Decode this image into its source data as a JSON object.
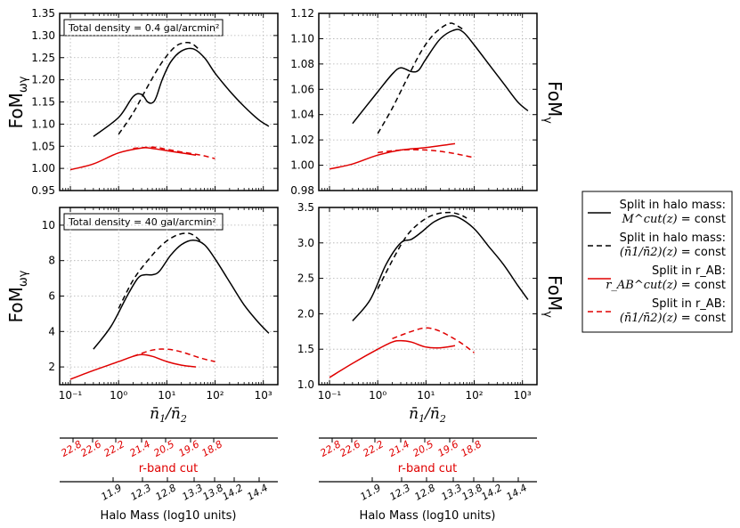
{
  "chart_data": [
    {
      "type": "line",
      "panel": "top-left",
      "ylabel": "FoM_ωγ",
      "xscale": "log",
      "xlim": [
        0.06,
        2000
      ],
      "ylim": [
        0.95,
        1.35
      ],
      "yticks": [
        "0.95",
        "1.00",
        "1.05",
        "1.10",
        "1.15",
        "1.20",
        "1.25",
        "1.30",
        "1.35"
      ],
      "xticks": [],
      "annotation": "Total density = 0.4 gal/arcmin²",
      "series": [
        {
          "name": "halo_const",
          "color": "#000000",
          "style": "solid",
          "points": [
            [
              0.3,
              1.072
            ],
            [
              1,
              1.115
            ],
            [
              2,
              1.162
            ],
            [
              3,
              1.167
            ],
            [
              4,
              1.15
            ],
            [
              5,
              1.148
            ],
            [
              6,
              1.16
            ],
            [
              8,
              1.2
            ],
            [
              12,
              1.24
            ],
            [
              20,
              1.265
            ],
            [
              35,
              1.27
            ],
            [
              60,
              1.25
            ],
            [
              100,
              1.215
            ],
            [
              200,
              1.175
            ],
            [
              400,
              1.14
            ],
            [
              800,
              1.11
            ],
            [
              1300,
              1.095
            ]
          ]
        },
        {
          "name": "halo_ratio",
          "color": "#000000",
          "style": "dashed",
          "points": [
            [
              1,
              1.077
            ],
            [
              2,
              1.125
            ],
            [
              4,
              1.185
            ],
            [
              8,
              1.24
            ],
            [
              15,
              1.275
            ],
            [
              25,
              1.284
            ],
            [
              35,
              1.28
            ],
            [
              50,
              1.265
            ]
          ]
        },
        {
          "name": "rab_const",
          "color": "#e00000",
          "style": "solid",
          "points": [
            [
              0.1,
              0.997
            ],
            [
              0.3,
              1.01
            ],
            [
              1,
              1.035
            ],
            [
              3,
              1.046
            ],
            [
              5,
              1.045
            ],
            [
              10,
              1.04
            ],
            [
              20,
              1.035
            ],
            [
              40,
              1.03
            ]
          ]
        },
        {
          "name": "rab_ratio",
          "color": "#e00000",
          "style": "dashed",
          "points": [
            [
              2,
              1.045
            ],
            [
              5,
              1.048
            ],
            [
              10,
              1.043
            ],
            [
              20,
              1.037
            ],
            [
              50,
              1.03
            ],
            [
              100,
              1.022
            ]
          ]
        }
      ]
    },
    {
      "type": "line",
      "panel": "top-right",
      "ylabel": "FoM_γ",
      "xscale": "log",
      "xlim": [
        0.06,
        2000
      ],
      "ylim": [
        0.98,
        1.12
      ],
      "yticks": [
        "0.98",
        "1.00",
        "1.02",
        "1.04",
        "1.06",
        "1.08",
        "1.10",
        "1.12"
      ],
      "xticks": [],
      "series": [
        {
          "name": "halo_const",
          "color": "#000000",
          "style": "solid",
          "points": [
            [
              0.3,
              1.033
            ],
            [
              1,
              1.058
            ],
            [
              2,
              1.072
            ],
            [
              3,
              1.077
            ],
            [
              5,
              1.074
            ],
            [
              7,
              1.075
            ],
            [
              10,
              1.084
            ],
            [
              20,
              1.1
            ],
            [
              40,
              1.107
            ],
            [
              60,
              1.105
            ],
            [
              100,
              1.095
            ],
            [
              200,
              1.08
            ],
            [
              400,
              1.065
            ],
            [
              800,
              1.05
            ],
            [
              1300,
              1.043
            ]
          ]
        },
        {
          "name": "halo_ratio",
          "color": "#000000",
          "style": "dashed",
          "points": [
            [
              1,
              1.025
            ],
            [
              2,
              1.045
            ],
            [
              4,
              1.068
            ],
            [
              8,
              1.09
            ],
            [
              15,
              1.104
            ],
            [
              30,
              1.112
            ],
            [
              45,
              1.11
            ],
            [
              60,
              1.107
            ]
          ]
        },
        {
          "name": "rab_const",
          "color": "#e00000",
          "style": "solid",
          "points": [
            [
              0.1,
              0.997
            ],
            [
              0.3,
              1.001
            ],
            [
              1,
              1.008
            ],
            [
              3,
              1.012
            ],
            [
              10,
              1.014
            ],
            [
              40,
              1.017
            ]
          ]
        },
        {
          "name": "rab_ratio",
          "color": "#e00000",
          "style": "dashed",
          "points": [
            [
              1,
              1.01
            ],
            [
              3,
              1.012
            ],
            [
              10,
              1.012
            ],
            [
              30,
              1.01
            ],
            [
              100,
              1.006
            ]
          ]
        }
      ]
    },
    {
      "type": "line",
      "panel": "bottom-left",
      "ylabel": "FoM_ωγ",
      "xscale": "log",
      "xlim": [
        0.06,
        2000
      ],
      "ylim": [
        1,
        11
      ],
      "yticks": [
        "2",
        "4",
        "6",
        "8",
        "10"
      ],
      "xticks": [
        "10⁻¹",
        "10⁰",
        "10¹",
        "10²",
        "10³"
      ],
      "xlabel": "n̄1/n̄2",
      "annotation": "Total density = 40 gal/arcmin²",
      "series": [
        {
          "name": "halo_const",
          "color": "#000000",
          "style": "solid",
          "points": [
            [
              0.3,
              3.0
            ],
            [
              0.7,
              4.3
            ],
            [
              1.5,
              6.0
            ],
            [
              2.5,
              7.0
            ],
            [
              3.5,
              7.2
            ],
            [
              5,
              7.2
            ],
            [
              7,
              7.4
            ],
            [
              12,
              8.3
            ],
            [
              20,
              8.9
            ],
            [
              35,
              9.15
            ],
            [
              60,
              8.9
            ],
            [
              100,
              8.1
            ],
            [
              200,
              6.8
            ],
            [
              400,
              5.5
            ],
            [
              800,
              4.5
            ],
            [
              1300,
              3.9
            ]
          ]
        },
        {
          "name": "halo_ratio",
          "color": "#000000",
          "style": "dashed",
          "points": [
            [
              1,
              5.3
            ],
            [
              2,
              6.9
            ],
            [
              4,
              8.0
            ],
            [
              8,
              8.9
            ],
            [
              15,
              9.4
            ],
            [
              25,
              9.55
            ],
            [
              35,
              9.45
            ],
            [
              50,
              9.1
            ]
          ]
        },
        {
          "name": "rab_const",
          "color": "#e00000",
          "style": "solid",
          "points": [
            [
              0.1,
              1.3
            ],
            [
              0.3,
              1.8
            ],
            [
              1,
              2.3
            ],
            [
              2,
              2.6
            ],
            [
              3,
              2.7
            ],
            [
              5,
              2.6
            ],
            [
              10,
              2.3
            ],
            [
              20,
              2.1
            ],
            [
              40,
              2.0
            ]
          ]
        },
        {
          "name": "rab_ratio",
          "color": "#e00000",
          "style": "dashed",
          "points": [
            [
              2,
              2.6
            ],
            [
              5,
              2.95
            ],
            [
              10,
              3.0
            ],
            [
              20,
              2.85
            ],
            [
              50,
              2.5
            ],
            [
              100,
              2.3
            ]
          ]
        }
      ]
    },
    {
      "type": "line",
      "panel": "bottom-right",
      "ylabel": "FoM_γ",
      "xscale": "log",
      "xlim": [
        0.06,
        2000
      ],
      "ylim": [
        1.0,
        3.5
      ],
      "yticks": [
        "1.0",
        "1.5",
        "2.0",
        "2.5",
        "3.0",
        "3.5"
      ],
      "xticks": [
        "10⁻¹",
        "10⁰",
        "10¹",
        "10²",
        "10³"
      ],
      "xlabel": "n̄1/n̄2",
      "series": [
        {
          "name": "halo_const",
          "color": "#000000",
          "style": "solid",
          "points": [
            [
              0.3,
              1.9
            ],
            [
              0.7,
              2.2
            ],
            [
              1.5,
              2.7
            ],
            [
              3,
              3.0
            ],
            [
              5,
              3.05
            ],
            [
              8,
              3.15
            ],
            [
              15,
              3.3
            ],
            [
              30,
              3.38
            ],
            [
              50,
              3.35
            ],
            [
              100,
              3.2
            ],
            [
              200,
              2.95
            ],
            [
              400,
              2.7
            ],
            [
              800,
              2.4
            ],
            [
              1300,
              2.2
            ]
          ]
        },
        {
          "name": "halo_ratio",
          "color": "#000000",
          "style": "dashed",
          "points": [
            [
              1,
              2.35
            ],
            [
              2,
              2.75
            ],
            [
              4,
              3.1
            ],
            [
              8,
              3.3
            ],
            [
              15,
              3.4
            ],
            [
              30,
              3.43
            ],
            [
              50,
              3.4
            ],
            [
              70,
              3.35
            ]
          ]
        },
        {
          "name": "rab_const",
          "color": "#e00000",
          "style": "solid",
          "points": [
            [
              0.1,
              1.1
            ],
            [
              0.3,
              1.3
            ],
            [
              1,
              1.5
            ],
            [
              2,
              1.6
            ],
            [
              3,
              1.62
            ],
            [
              5,
              1.6
            ],
            [
              10,
              1.53
            ],
            [
              20,
              1.52
            ],
            [
              40,
              1.55
            ]
          ]
        },
        {
          "name": "rab_ratio",
          "color": "#e00000",
          "style": "dashed",
          "points": [
            [
              2,
              1.65
            ],
            [
              5,
              1.75
            ],
            [
              10,
              1.8
            ],
            [
              20,
              1.75
            ],
            [
              50,
              1.6
            ],
            [
              100,
              1.45
            ]
          ]
        }
      ]
    }
  ],
  "legend": {
    "entries": [
      {
        "line1": "Split in halo mass:",
        "line2_math": "M^cut(z)",
        "line2_text": " = const",
        "color": "#000000",
        "style": "solid"
      },
      {
        "line1": "Split in halo mass:",
        "line2_math": "(n̄1/n̄2)(z)",
        "line2_text": " = const",
        "color": "#000000",
        "style": "dashed"
      },
      {
        "line1": "Split in r_AB:",
        "line2_math": "r_AB^cut(z)",
        "line2_text": " = const",
        "color": "#e00000",
        "style": "solid"
      },
      {
        "line1": "Split in r_AB:",
        "line2_math": "(n̄1/n̄2)(z)",
        "line2_text": " = const",
        "color": "#e00000",
        "style": "dashed"
      }
    ]
  },
  "secondary_axes": {
    "rband_ticks": [
      "22.8",
      "22.6",
      "22.2",
      "21.4",
      "20.5",
      "19.6",
      "18.8"
    ],
    "rband_label": "r-band cut",
    "mass_ticks": [
      "11.9",
      "12.3",
      "12.8",
      "13.3",
      "13.8",
      "14.2",
      "14.4"
    ],
    "mass_label": "Halo Mass (log10 units)"
  }
}
